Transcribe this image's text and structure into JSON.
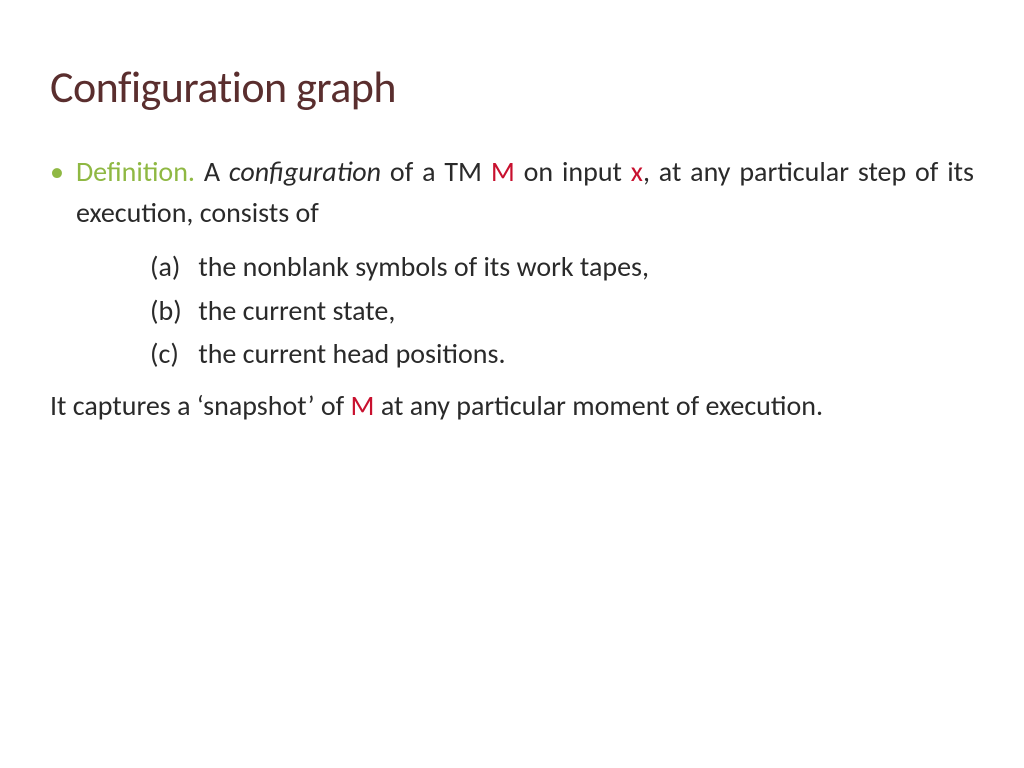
{
  "title": "Configuration graph",
  "definition_label": "Definition.",
  "para1_pre": "  A ",
  "para1_config": "configuration",
  "para1_mid1": " of a TM ",
  "para1_M": "M",
  "para1_mid2": " on input ",
  "para1_x": "x",
  "para1_post": ", at any particular step of its execution, consists of",
  "item_a_label": "(a)",
  "item_a_text": "  the nonblank symbols of its work tapes,",
  "item_b_label": "(b)",
  "item_b_text": "  the current state,",
  "item_c_label": "(c)",
  "item_c_text": "  the current head positions.",
  "closing_pre": "It captures a ‘snapshot’ of ",
  "closing_M": "M",
  "closing_post": " at any particular moment of execution.",
  "colors": {
    "title_color": "#5a2e2e",
    "accent_green": "#8fb843",
    "accent_red": "#c8102e",
    "text_color": "#2a2a2a",
    "background": "#ffffff"
  },
  "typography": {
    "title_fontsize": 44,
    "body_fontsize": 28,
    "font_family": "Gill Sans"
  }
}
